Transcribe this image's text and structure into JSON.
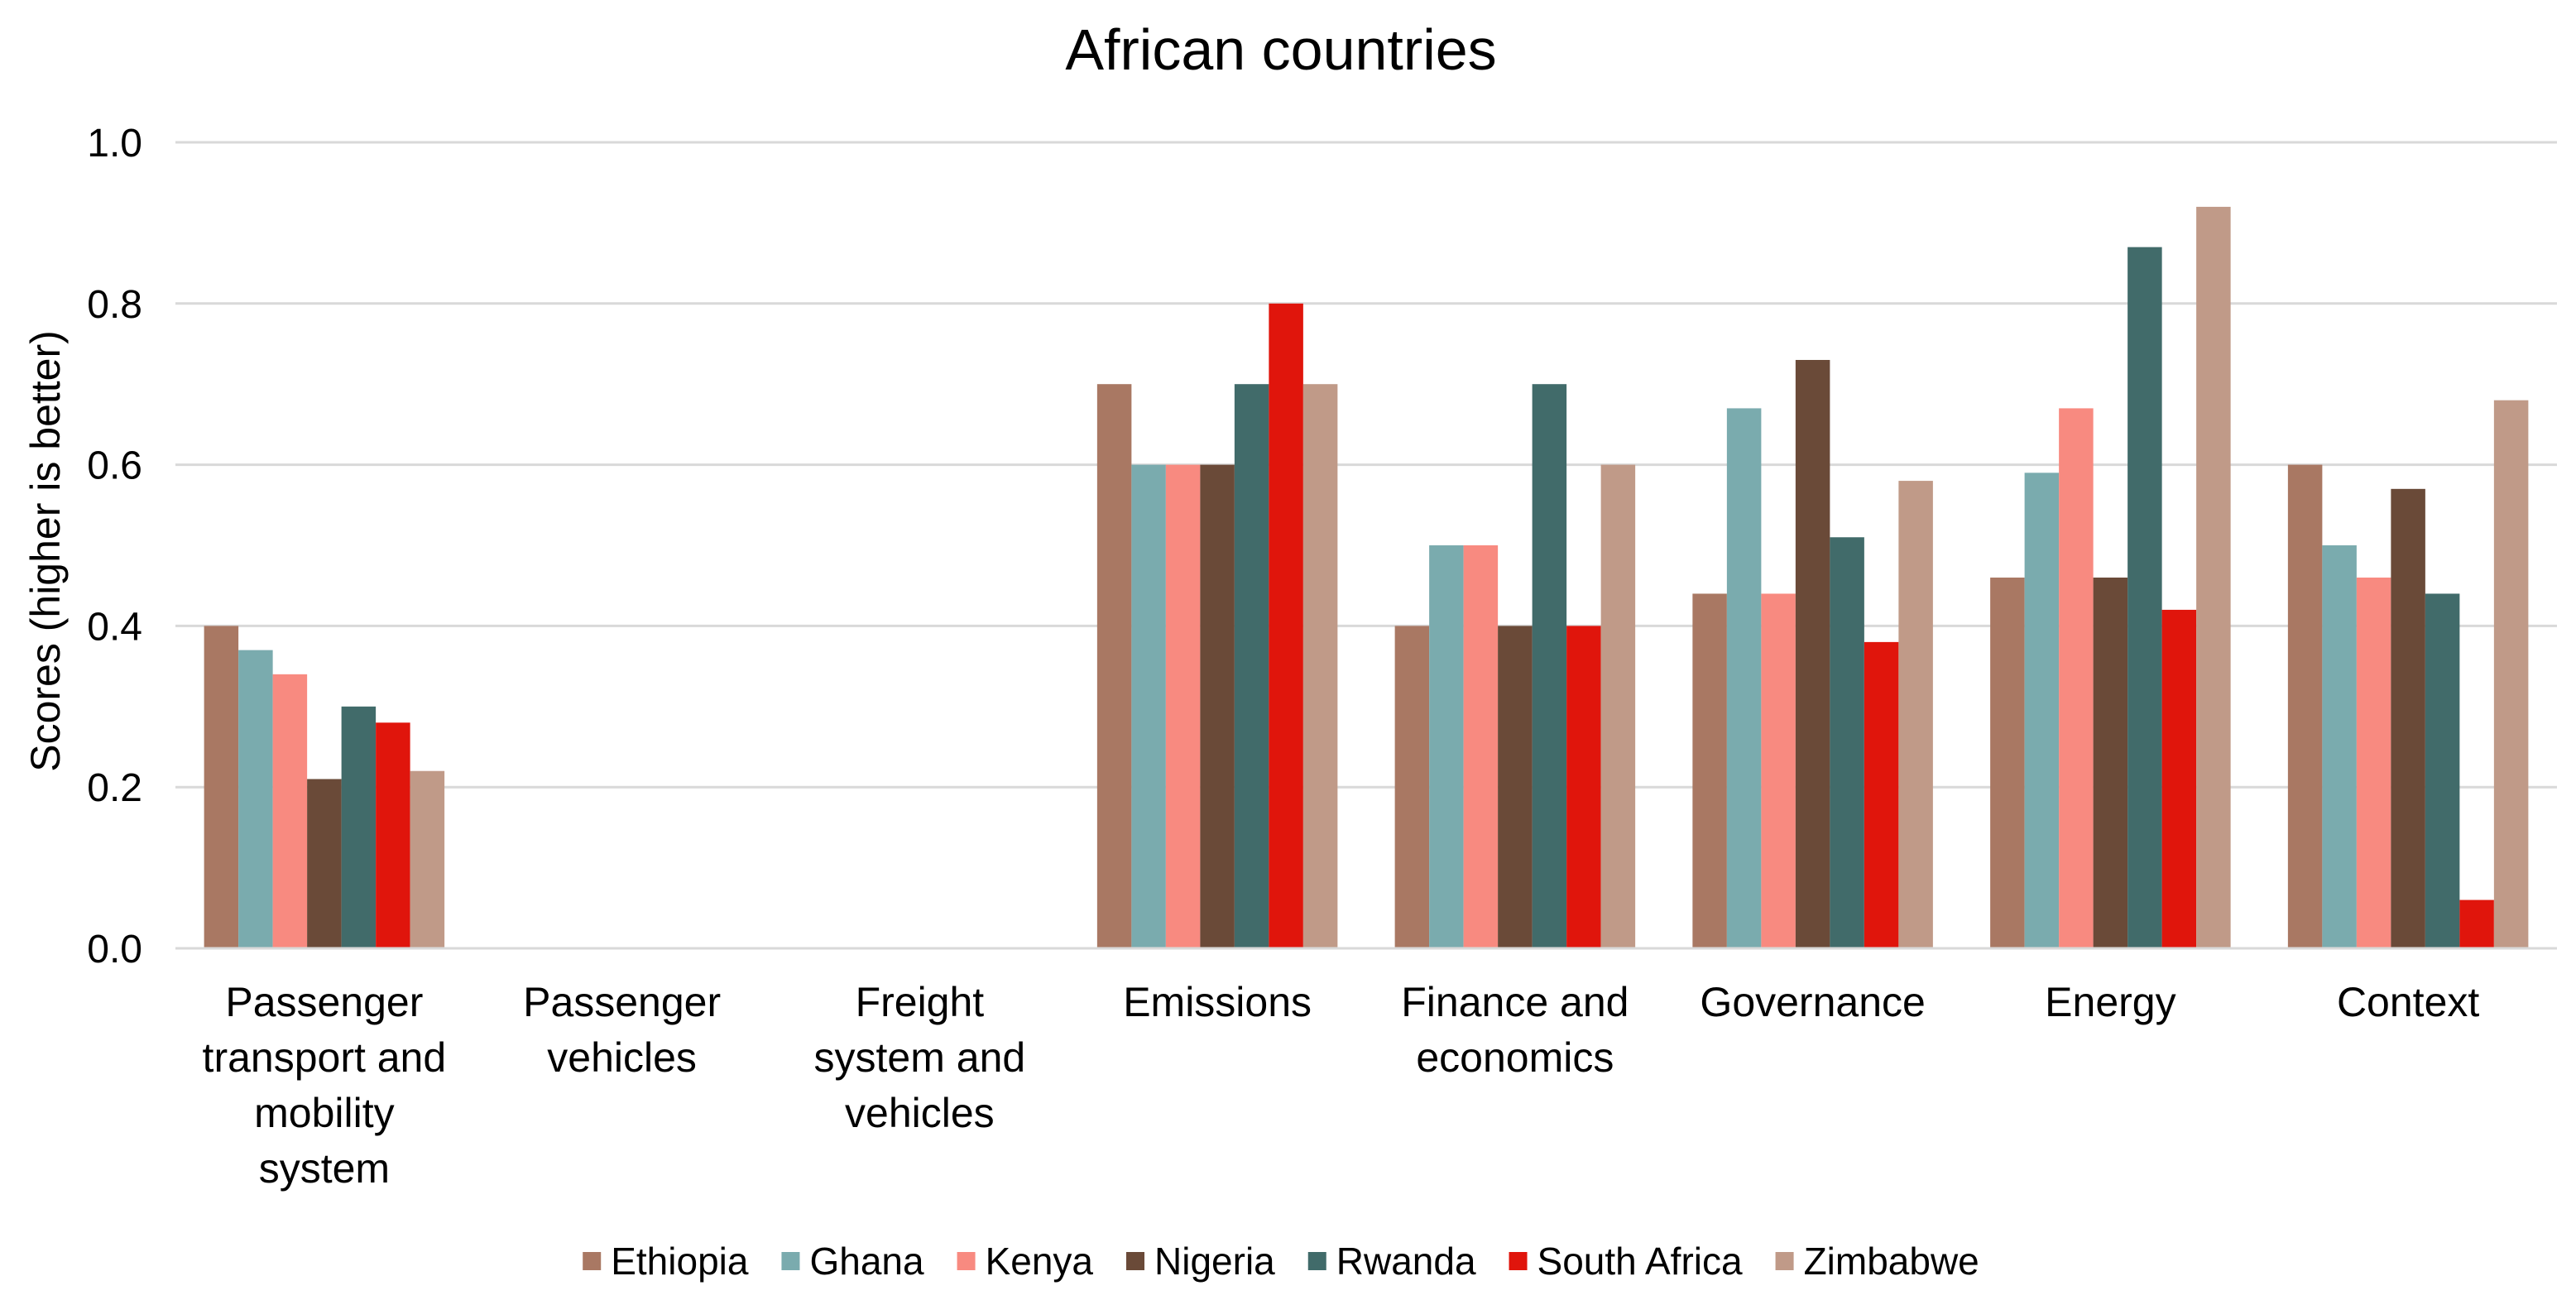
{
  "chart_data": {
    "type": "bar",
    "title": "African countries",
    "xlabel": "",
    "ylabel": "Scores (higher is better)",
    "ylim": [
      0,
      1.0
    ],
    "yticks": [
      "0.0",
      "0.2",
      "0.4",
      "0.6",
      "0.8",
      "1.0"
    ],
    "ytick_values": [
      0,
      0.2,
      0.4,
      0.6,
      0.8,
      1.0
    ],
    "grid": true,
    "legend_position": "bottom",
    "categories": [
      [
        "Passenger",
        "transport and",
        "mobility",
        "system"
      ],
      [
        "Passenger",
        "vehicles"
      ],
      [
        "Freight",
        "system and",
        "vehicles"
      ],
      [
        "Emissions"
      ],
      [
        "Finance and",
        "economics"
      ],
      [
        "Governance"
      ],
      [
        "Energy"
      ],
      [
        "Context"
      ]
    ],
    "series": [
      {
        "name": "Ethiopia",
        "color": "#a97863",
        "values": [
          0.4,
          null,
          null,
          0.7,
          0.4,
          0.44,
          0.46,
          0.6
        ]
      },
      {
        "name": "Ghana",
        "color": "#7aabae",
        "values": [
          0.37,
          null,
          null,
          0.6,
          0.5,
          0.67,
          0.59,
          0.5
        ]
      },
      {
        "name": "Kenya",
        "color": "#f88a80",
        "values": [
          0.34,
          null,
          null,
          0.6,
          0.5,
          0.44,
          0.67,
          0.46
        ]
      },
      {
        "name": "Nigeria",
        "color": "#6a4a38",
        "values": [
          0.21,
          null,
          null,
          0.6,
          0.4,
          0.73,
          0.46,
          0.57
        ]
      },
      {
        "name": "Rwanda",
        "color": "#416b6a",
        "values": [
          0.3,
          null,
          null,
          0.7,
          0.7,
          0.51,
          0.87,
          0.44
        ]
      },
      {
        "name": "South Africa",
        "color": "#e0150c",
        "values": [
          0.28,
          null,
          null,
          0.8,
          0.4,
          0.38,
          0.42,
          0.06
        ]
      },
      {
        "name": "Zimbabwe",
        "color": "#c09a88",
        "values": [
          0.22,
          null,
          null,
          0.7,
          0.6,
          0.58,
          0.92,
          0.68
        ]
      }
    ]
  }
}
